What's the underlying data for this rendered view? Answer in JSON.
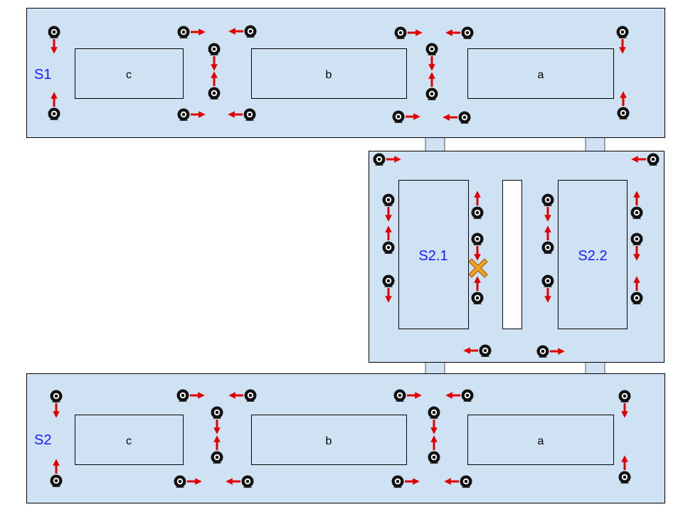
{
  "colors": {
    "zone_fill": "#cfe2f3",
    "label_blue": "#1a1aff",
    "arrow_red": "#e00000",
    "fault_orange": "#f5a020",
    "camera_black": "#111111"
  },
  "zones": {
    "s1": {
      "label": "S1",
      "slots": {
        "left": "c",
        "middle": "b",
        "right": "a"
      }
    },
    "s2_module": {
      "left_label": "S2.1",
      "right_label": "S2.2"
    },
    "s2": {
      "label": "S2",
      "slots": {
        "left": "c",
        "middle": "b",
        "right": "a"
      }
    }
  },
  "icons": {
    "camera": "security-camera-icon",
    "direction": "red-arrow",
    "fault": "orange-x-fault-marker"
  }
}
